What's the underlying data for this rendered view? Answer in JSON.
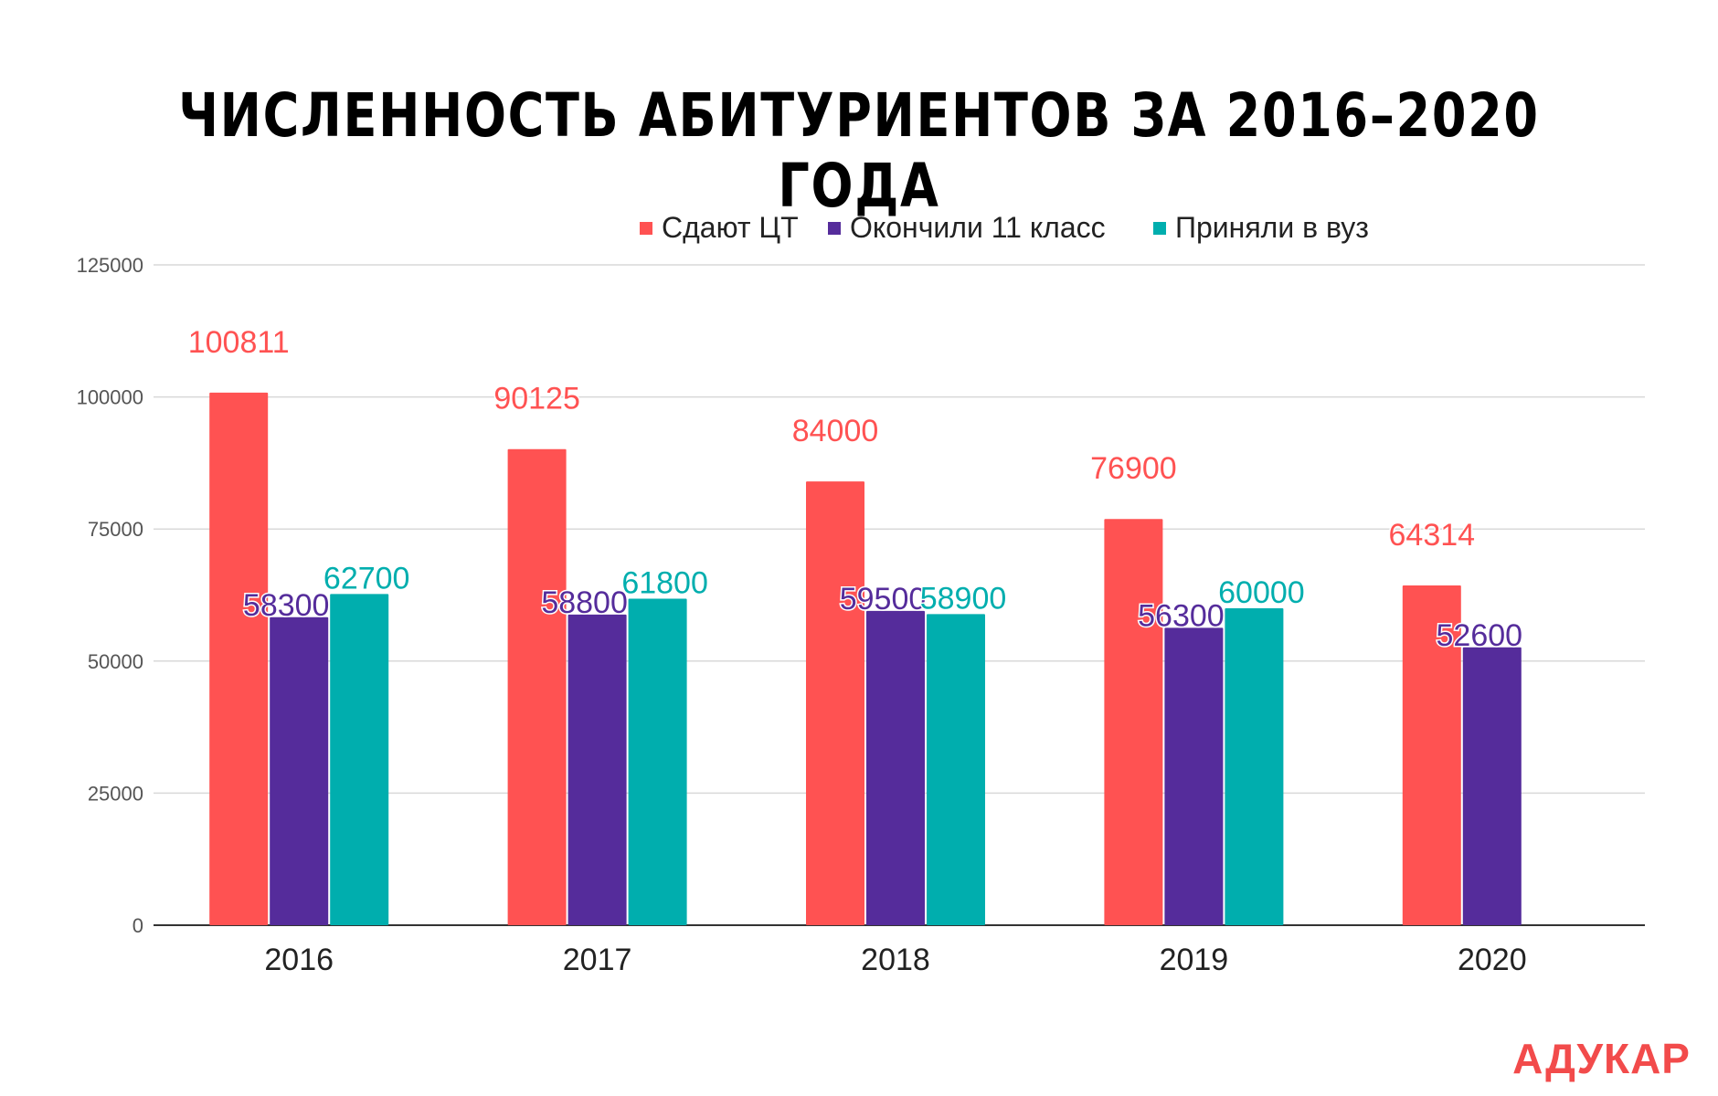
{
  "chart_data": {
    "type": "bar",
    "title": "ЧИСЛЕННОСТЬ АБИТУРИЕНТОВ ЗА 2016–2020 ГОДА",
    "categories": [
      "2016",
      "2017",
      "2018",
      "2019",
      "2020"
    ],
    "series": [
      {
        "name": "Сдают ЦТ",
        "color": "#ff5252",
        "values": [
          100811,
          90125,
          84000,
          76900,
          64314
        ]
      },
      {
        "name": "Окончили 11 класс",
        "color": "#552c9b",
        "values": [
          58300,
          58800,
          59500,
          56300,
          52600
        ]
      },
      {
        "name": "Приняли в вуз",
        "color": "#00aeae",
        "values": [
          62700,
          61800,
          58900,
          60000,
          null
        ]
      }
    ],
    "y_ticks": [
      "0",
      "25000",
      "50000",
      "75000",
      "100000",
      "125000"
    ],
    "ylim": [
      0,
      125000
    ],
    "grid": true,
    "legend_position": "top",
    "xlabel": "",
    "ylabel": ""
  },
  "brand": {
    "logo_text": "АДУКАР",
    "color": "#f24b4b"
  }
}
